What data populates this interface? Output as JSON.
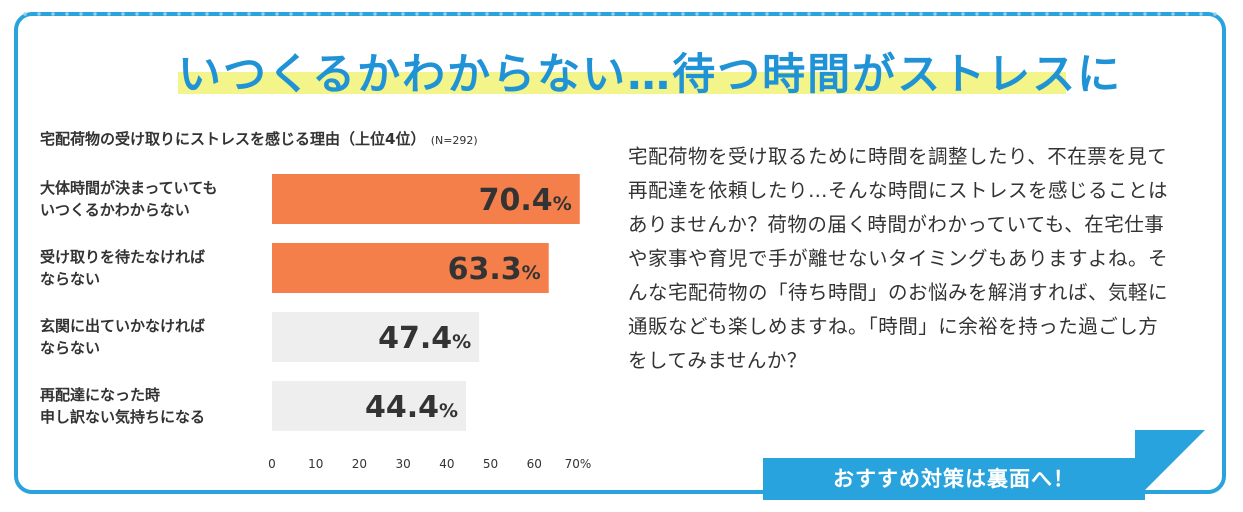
{
  "headline": "いつくるかわからない…待つ時間がストレスに",
  "chart_title": "宅配荷物の受け取りにストレスを感じる理由（上位4位）",
  "chart_note": "(N=292)",
  "body_text": "宅配荷物を受け取るために時間を調整したり、不在票を見て再配達を依頼したり…そんな時間にストレスを感じることはありませんか？荷物の届く時間がわかっていても、在宅仕事や家事や育児で手が離せないタイミングもありますよね。そんな宅配荷物の「待ち時間」のお悩みを解消すれば、気軽に通販なども楽しめますね。「時間」に余裕を持った過ごし方をしてみませんか？",
  "cta_label": "おすすめ対策は裏面へ！",
  "colors": {
    "accent": "#29a3dd",
    "bar_high": "#f47f4a",
    "bar_low": "#efeeee",
    "headline": "#1f93d6",
    "highlight": "#f3f48a"
  },
  "chart_data": {
    "type": "bar",
    "orientation": "horizontal",
    "title": "宅配荷物の受け取りにストレスを感じる理由（上位4位）",
    "note": "(N=292)",
    "categories": [
      "大体時間が決まっていても\nいつくるかわからない",
      "受け取りを待たなければ\nならない",
      "玄関に出ていかなければ\nならない",
      "再配達になった時\n申し訳ない気持ちになる"
    ],
    "values": [
      70.4,
      63.3,
      47.4,
      44.4
    ],
    "value_labels": [
      "70.4%",
      "63.3%",
      "47.4%",
      "44.4%"
    ],
    "highlight": [
      true,
      true,
      false,
      false
    ],
    "xlim": [
      0,
      70
    ],
    "xticks": [
      "0",
      "10",
      "20",
      "30",
      "40",
      "50",
      "60",
      "70%"
    ],
    "grid": false
  }
}
